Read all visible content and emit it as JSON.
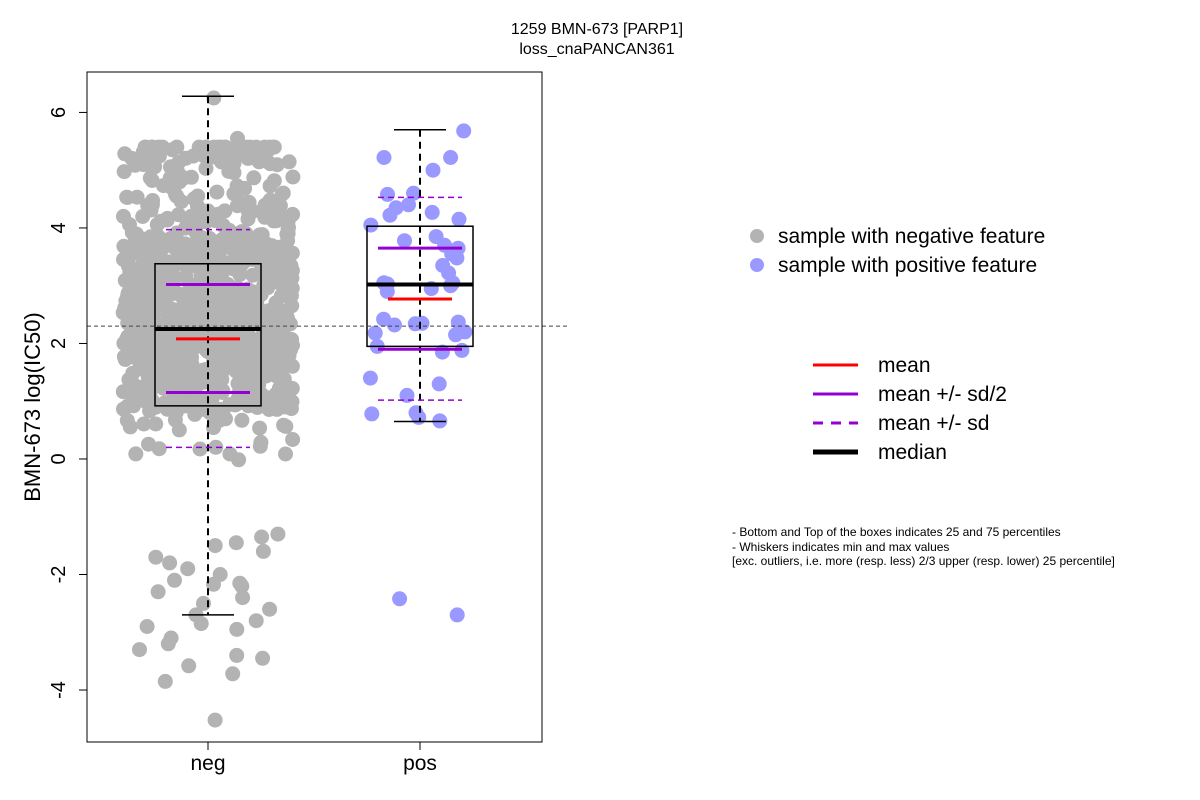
{
  "chart_data": {
    "type": "box",
    "title": "1259 BMN-673 [PARP1]",
    "subtitle": "loss_cnaPANCAN361",
    "xlabel": "",
    "ylabel": "BMN-673 log(IC50)",
    "ylim": [
      -4.9,
      6.7
    ],
    "yticks": [
      -4,
      -2,
      0,
      2,
      4,
      6
    ],
    "overall_median": 2.3,
    "groups": [
      {
        "category": "neg",
        "color": "#b3b3b3",
        "whisker_min": -2.7,
        "q1": 0.92,
        "median": 2.25,
        "q3": 3.38,
        "whisker_max": 6.28,
        "mean": 2.08,
        "mean_minus_half_sd": 1.15,
        "mean_plus_half_sd": 3.02,
        "mean_minus_sd": 0.2,
        "mean_plus_sd": 3.97,
        "point_count": 900,
        "points_extra": [
          6.25,
          5.55,
          -4.52,
          -3.85,
          -3.72,
          -3.58,
          -3.45,
          -3.4,
          -3.3,
          -3.2,
          -3.1,
          -2.95,
          -2.9,
          -2.85,
          -2.8,
          -2.7,
          -2.6,
          -2.5,
          -2.4,
          -2.3,
          -2.2,
          -2.17,
          -2.15,
          -2.1,
          -2.0,
          -1.9,
          -1.8,
          -1.7,
          -1.6,
          -1.5,
          -1.45,
          -1.35,
          -1.3
        ]
      },
      {
        "category": "pos",
        "color": "#9999ff",
        "whisker_min": 0.65,
        "q1": 1.95,
        "median": 3.02,
        "q3": 4.03,
        "whisker_max": 5.7,
        "mean": 2.77,
        "mean_minus_half_sd": 1.9,
        "mean_plus_half_sd": 3.65,
        "mean_minus_sd": 1.02,
        "mean_plus_sd": 4.53,
        "points": [
          5.68,
          5.22,
          5.22,
          5.0,
          4.6,
          4.58,
          4.4,
          4.35,
          4.27,
          4.22,
          4.15,
          4.05,
          3.85,
          3.78,
          3.7,
          3.65,
          3.55,
          3.48,
          3.35,
          3.22,
          3.05,
          3.05,
          3.03,
          3.0,
          2.95,
          2.9,
          2.42,
          2.37,
          2.35,
          2.32,
          2.34,
          2.2,
          2.18,
          2.15,
          1.95,
          1.88,
          1.85,
          1.4,
          1.3,
          1.1,
          0.8,
          0.78,
          0.72,
          0.66,
          -2.42,
          -2.7
        ]
      }
    ],
    "legend_points": [
      {
        "label": "sample with negative feature",
        "color": "#b3b3b3"
      },
      {
        "label": "sample with positive feature",
        "color": "#9999ff"
      }
    ],
    "legend_lines": [
      {
        "label": "mean",
        "color": "#ff0000",
        "style": "solid"
      },
      {
        "label": "mean +/- sd/2",
        "color": "#9400d3",
        "style": "solid"
      },
      {
        "label": "mean +/- sd",
        "color": "#9400d3",
        "style": "dashed"
      },
      {
        "label": "median",
        "color": "#000000",
        "style": "thick"
      }
    ],
    "notes": [
      "- Bottom and Top of the boxes indicates 25 and 75 percentiles",
      "- Whiskers indicates min and max values",
      "[exc. outliers, i.e. more (resp. less) 2/3 upper (resp. lower) 25 percentile]"
    ]
  }
}
